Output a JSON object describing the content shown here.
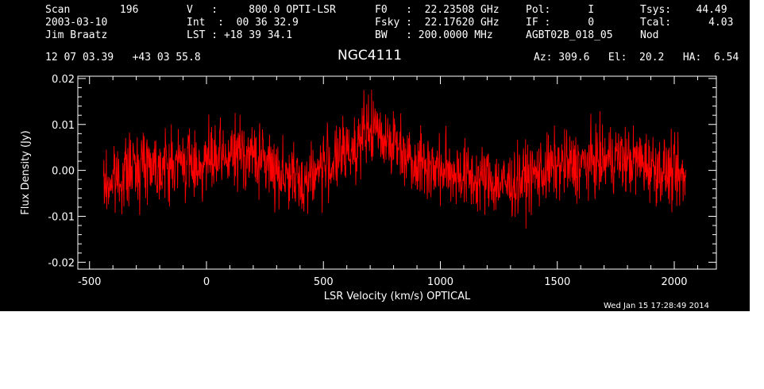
{
  "header": {
    "col1": [
      "Scan        196",
      "2003-03-10",
      "Jim Braatz"
    ],
    "col2": [
      "V   :     800.0 OPTI-LSR",
      "Int  :  00 36 32.9",
      "LST : +18 39 34.1"
    ],
    "col3": [
      "F0   :  22.23508 GHz",
      "Fsky :  22.17620 GHz",
      "BW   : 200.0000 MHz"
    ],
    "col4": [
      "Pol:      I",
      "IF :      0",
      "AGBT02B_018_05"
    ],
    "col5": [
      "Tsys:    44.49",
      "Tcal:      4.03",
      "Nod"
    ],
    "coords": "12 07 03.39   +43 03 55.8",
    "source": "NGC4111",
    "azel": "Az: 309.6   El:  20.2   HA:  6.54",
    "timestamp": "Wed Jan 15 17:28:49 2014"
  },
  "colors": {
    "background": "#000000",
    "axes": "#ffffff",
    "trace": "#ff0000"
  },
  "chart_data": {
    "type": "line",
    "title": "NGC4111",
    "xlabel": "LSR Velocity (km/s) OPTICAL",
    "ylabel": "Flux Density (Jy)",
    "xlim": [
      -550,
      2180
    ],
    "ylim": [
      -0.0215,
      0.0205
    ],
    "x_ticks": [
      -500,
      0,
      500,
      1000,
      1500,
      2000
    ],
    "x_tick_labels": [
      "-500",
      "0",
      "500",
      "1000",
      "1500",
      "2000"
    ],
    "y_ticks": [
      -0.02,
      -0.01,
      0.0,
      0.01,
      0.02
    ],
    "y_tick_labels": [
      "-0.02",
      "-0.01",
      "0.00",
      "0.01",
      "0.02"
    ],
    "series": [
      {
        "x": [
          -440,
          -400,
          -350,
          -300,
          -250,
          -200,
          -150,
          -100,
          -50,
          0,
          50,
          100,
          150,
          200,
          250,
          300,
          350,
          400,
          450,
          500,
          550,
          600,
          650,
          700,
          750,
          800,
          850,
          900,
          950,
          1000,
          1050,
          1100,
          1150,
          1200,
          1250,
          1300,
          1350,
          1400,
          1450,
          1500,
          1550,
          1600,
          1650,
          1700,
          1750,
          1800,
          1850,
          1900,
          1950,
          2000,
          2050
        ],
        "y": [
          -0.004,
          -0.002,
          -0.001,
          0.001,
          0.002,
          0.001,
          0.001,
          0.002,
          0.001,
          0.002,
          0.002,
          0.003,
          0.004,
          0.003,
          0.002,
          0.0,
          -0.001,
          -0.003,
          -0.001,
          0.001,
          0.002,
          0.004,
          0.006,
          0.009,
          0.008,
          0.006,
          0.004,
          0.002,
          0.001,
          0.0,
          0.0,
          -0.001,
          -0.002,
          -0.002,
          -0.003,
          -0.003,
          -0.002,
          -0.001,
          0.0,
          0.001,
          0.001,
          0.001,
          0.002,
          0.002,
          0.003,
          0.002,
          0.002,
          0.001,
          0.0,
          -0.001,
          -0.002
        ]
      }
    ]
  }
}
